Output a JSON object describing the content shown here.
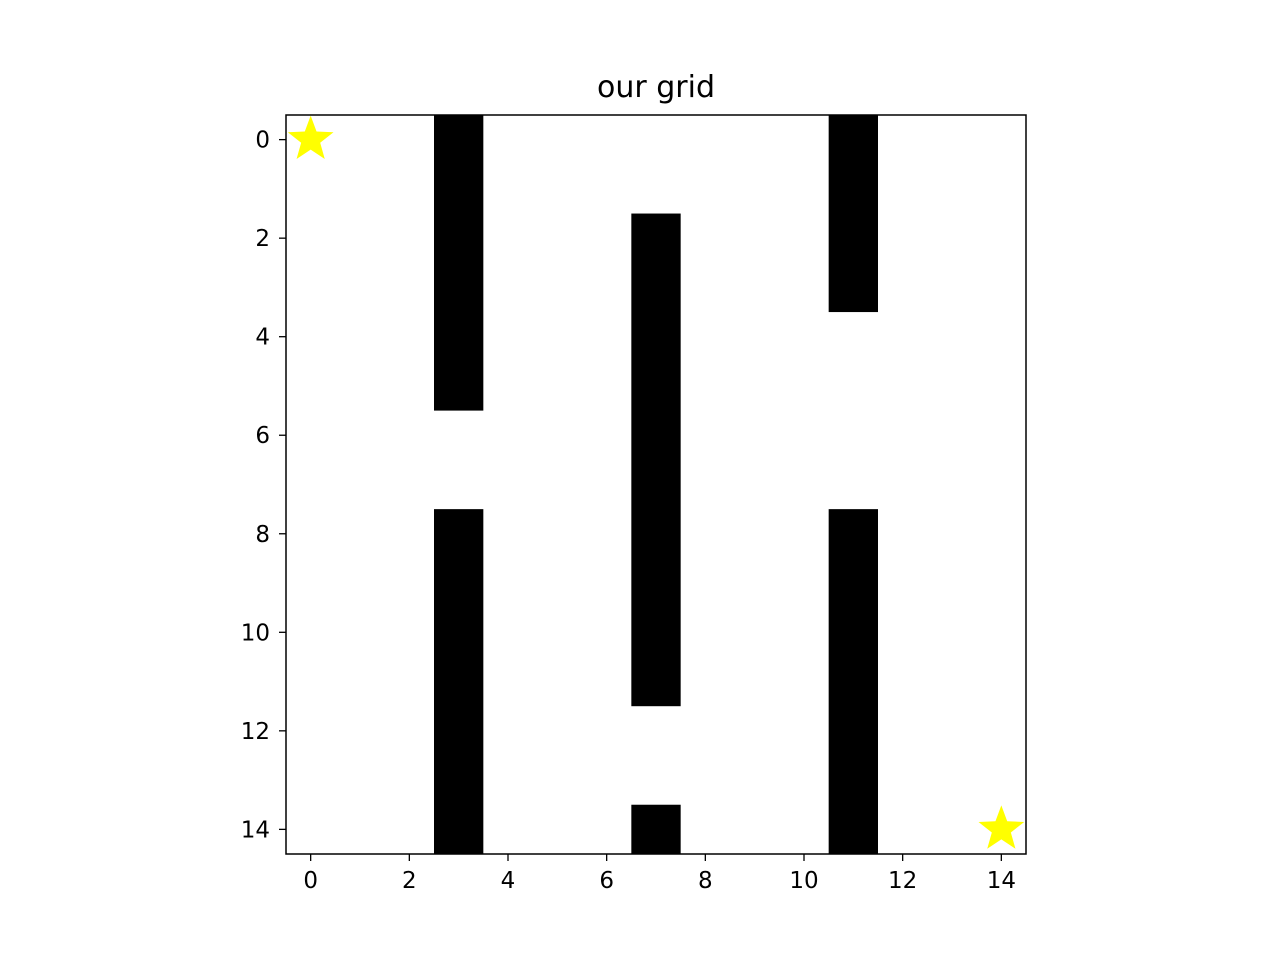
{
  "chart_data": {
    "type": "heatmap",
    "title": "our grid",
    "xlabel": "",
    "ylabel": "",
    "grid_size": [
      15,
      15
    ],
    "xlim": [
      -0.5,
      14.5
    ],
    "ylim": [
      14.5,
      -0.5
    ],
    "x_ticks": [
      0,
      2,
      4,
      6,
      8,
      10,
      12,
      14
    ],
    "y_ticks": [
      0,
      2,
      4,
      6,
      8,
      10,
      12,
      14
    ],
    "x_tick_labels": [
      "0",
      "2",
      "4",
      "6",
      "8",
      "10",
      "12",
      "14"
    ],
    "y_tick_labels": [
      "0",
      "2",
      "4",
      "6",
      "8",
      "10",
      "12",
      "14"
    ],
    "grid": false,
    "colors": {
      "free": "#ffffff",
      "wall": "#000000",
      "marker": "#ffff00"
    },
    "walls": [
      {
        "column": 3,
        "rows": [
          0,
          5
        ]
      },
      {
        "column": 3,
        "rows": [
          8,
          14
        ]
      },
      {
        "column": 7,
        "rows": [
          2,
          11
        ]
      },
      {
        "column": 7,
        "rows": [
          14,
          14
        ]
      },
      {
        "column": 11,
        "rows": [
          0,
          3
        ]
      },
      {
        "column": 11,
        "rows": [
          8,
          14
        ]
      }
    ],
    "markers": [
      {
        "shape": "star",
        "x": 0,
        "y": 0
      },
      {
        "shape": "star",
        "x": 14,
        "y": 14
      }
    ]
  }
}
